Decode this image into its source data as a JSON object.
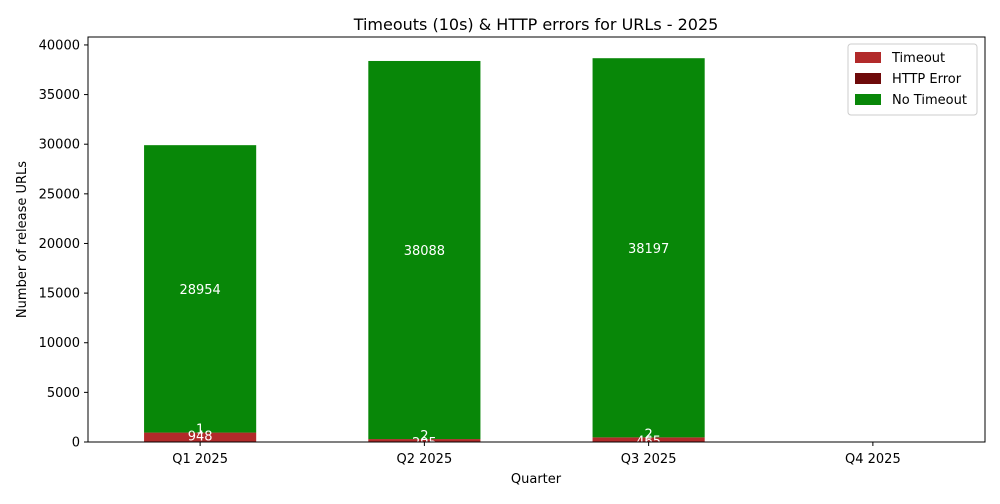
{
  "chart_data": {
    "type": "bar",
    "stacked": true,
    "title": "Timeouts (10s) & HTTP errors for URLs - 2025",
    "xlabel": "Quarter",
    "ylabel": "Number of release URLs",
    "categories": [
      "Q1 2025",
      "Q2 2025",
      "Q3 2025",
      "Q4 2025"
    ],
    "ylim": [
      0,
      40800
    ],
    "yticks": [
      0,
      5000,
      10000,
      15000,
      20000,
      25000,
      30000,
      35000,
      40000
    ],
    "grid": false,
    "legend_position": "top-right",
    "series": [
      {
        "name": "Timeout",
        "color": "#b22a2a",
        "values": [
          948,
          295,
          465,
          0
        ],
        "labels": [
          "948",
          "295",
          "465",
          ""
        ]
      },
      {
        "name": "HTTP Error",
        "color": "#6e0a0a",
        "values": [
          1,
          2,
          2,
          0
        ],
        "labels": [
          "1",
          "2",
          "2",
          ""
        ]
      },
      {
        "name": "No Timeout",
        "color": "#088708",
        "values": [
          28954,
          38088,
          38197,
          0
        ],
        "labels": [
          "28954",
          "38088",
          "38197",
          ""
        ]
      }
    ]
  }
}
